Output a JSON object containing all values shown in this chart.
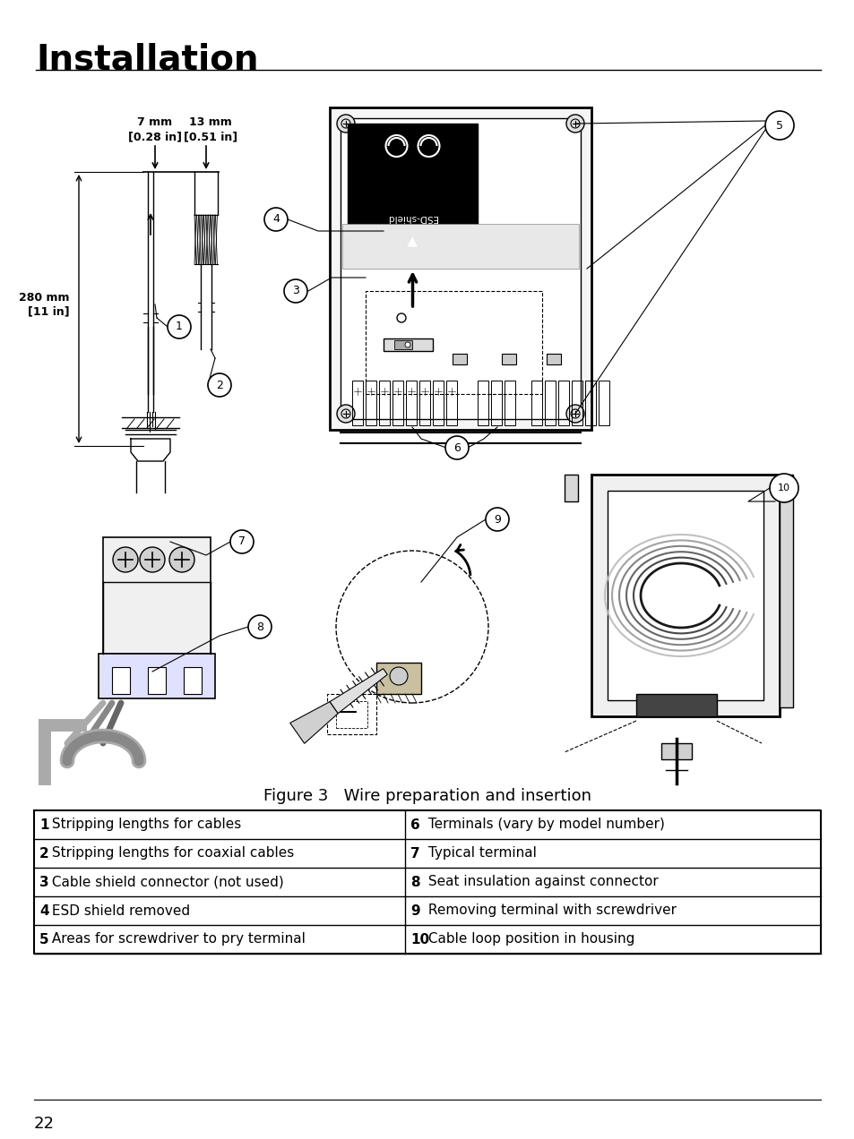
{
  "title": "Installation",
  "figure_caption": "Figure 3   Wire preparation and insertion",
  "page_number": "22",
  "background_color": "#ffffff",
  "title_fontsize": 28,
  "caption_fontsize": 13,
  "page_num_fontsize": 13,
  "table_rows": [
    {
      "left_num": "1",
      "left_text": " Stripping lengths for cables",
      "right_num": "6",
      "right_text": " Terminals (vary by model number)"
    },
    {
      "left_num": "2",
      "left_text": " Stripping lengths for coaxial cables",
      "right_num": "7",
      "right_text": " Typical terminal"
    },
    {
      "left_num": "3",
      "left_text": " Cable shield connector (not used)",
      "right_num": "8",
      "right_text": " Seat insulation against connector"
    },
    {
      "left_num": "4",
      "left_text": " ESD shield removed",
      "right_num": "9",
      "right_text": " Removing terminal with screwdriver"
    },
    {
      "left_num": "5",
      "left_text": " Areas for screwdriver to pry terminal",
      "right_num": "10",
      "right_text": " Cable loop position in housing"
    }
  ],
  "table_fontsize": 11,
  "dim_7mm": "7 mm\n[0.28 in]",
  "dim_13mm": "13 mm\n[0.51 in]",
  "dim_280mm": "280 mm\n[11 in]"
}
